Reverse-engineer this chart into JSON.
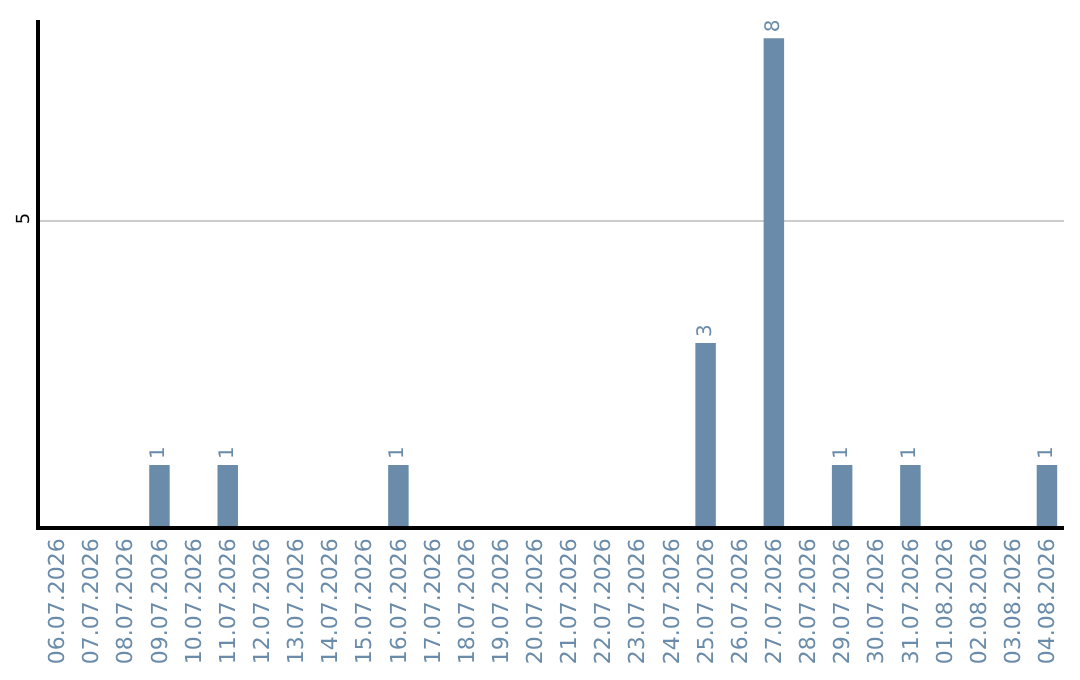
{
  "chart_data": {
    "type": "bar",
    "categories": [
      "06.07.2026",
      "07.07.2026",
      "08.07.2026",
      "09.07.2026",
      "10.07.2026",
      "11.07.2026",
      "12.07.2026",
      "13.07.2026",
      "14.07.2026",
      "15.07.2026",
      "16.07.2026",
      "17.07.2026",
      "18.07.2026",
      "19.07.2026",
      "20.07.2026",
      "21.07.2026",
      "22.07.2026",
      "23.07.2026",
      "24.07.2026",
      "25.07.2026",
      "26.07.2026",
      "27.07.2026",
      "28.07.2026",
      "29.07.2026",
      "30.07.2026",
      "31.07.2026",
      "01.08.2026",
      "02.08.2026",
      "03.08.2026",
      "04.08.2026"
    ],
    "values": [
      0,
      0,
      0,
      1,
      0,
      1,
      0,
      0,
      0,
      0,
      1,
      0,
      0,
      0,
      0,
      0,
      0,
      0,
      0,
      3,
      0,
      8,
      0,
      1,
      0,
      1,
      0,
      0,
      0,
      1
    ],
    "value_labels": [
      null,
      null,
      null,
      "1",
      null,
      "1",
      null,
      null,
      null,
      null,
      "1",
      null,
      null,
      null,
      null,
      null,
      null,
      null,
      null,
      "3",
      null,
      "8",
      null,
      "1",
      null,
      "1",
      null,
      null,
      null,
      "1"
    ],
    "color": "#6a8caa",
    "ylim": [
      0,
      8.3
    ],
    "yticks": [
      5
    ],
    "grid": "y",
    "legend": false
  }
}
